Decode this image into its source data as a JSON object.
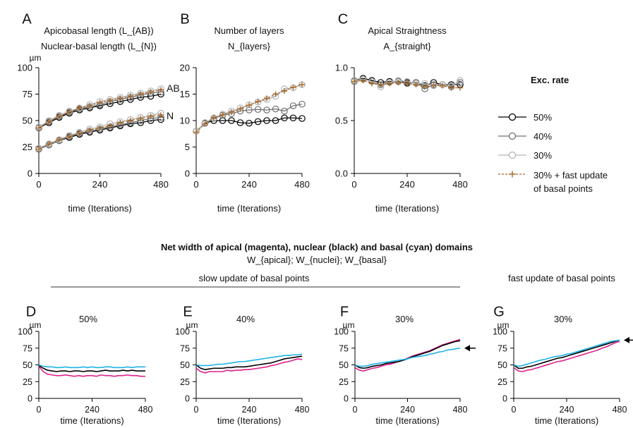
{
  "top_xlabel": "time (Iterations)",
  "unit": "µm",
  "legend": {
    "title": "Exc. rate",
    "entries": [
      {
        "label": "50%",
        "color": "#000000",
        "marker": "circle",
        "dash": false
      },
      {
        "label": "40%",
        "color": "#707070",
        "marker": "circle",
        "dash": false
      },
      {
        "label": "30%",
        "color": "#b4b4b4",
        "marker": "circle",
        "dash": false
      },
      {
        "label": "30% + fast update",
        "label2": "of basal points",
        "color": "#a5692a",
        "marker": "plus",
        "dash": true
      }
    ]
  },
  "bottom_header": {
    "title": "Net width of apical (magenta), nuclear (black) and basal (cyan) domains",
    "subtitle": "W_{apical}; W_{nuclei}; W_{basal}",
    "slow_label": "slow update of basal points",
    "fast_label": "fast update of basal points"
  },
  "colors": {
    "apical": "#e0208a",
    "nuclear": "#000000",
    "basal": "#1fb3e8",
    "fast": "#a5692a"
  },
  "chart_data": [
    {
      "panel": "A",
      "type": "line",
      "title": "Apicobasal length (L_{AB})",
      "subtitle": "Nuclear-basal length (L_{N})",
      "xlabel": "time (Iterations)",
      "ylabel": "µm",
      "xlim": [
        0,
        480
      ],
      "ylim": [
        0,
        100
      ],
      "xticks": [
        0,
        240,
        480
      ],
      "yticks": [
        0,
        25,
        50,
        75,
        100
      ],
      "annotations": [
        {
          "text": "AB",
          "x": 480,
          "y": 80
        },
        {
          "text": "N",
          "x": 480,
          "y": 54
        }
      ],
      "x": [
        0,
        40,
        80,
        120,
        160,
        200,
        240,
        280,
        320,
        360,
        400,
        440,
        480
      ],
      "series": [
        {
          "name": "50% AB",
          "values": [
            43,
            48,
            53,
            57,
            60,
            62,
            64,
            66,
            68,
            70,
            72,
            73,
            75
          ]
        },
        {
          "name": "40% AB",
          "values": [
            43,
            49,
            54,
            58,
            61,
            63,
            65,
            68,
            70,
            72,
            74,
            76,
            77
          ]
        },
        {
          "name": "30% AB",
          "values": [
            44,
            50,
            55,
            59,
            62,
            65,
            68,
            70,
            72,
            74,
            76,
            78,
            80
          ]
        },
        {
          "name": "30% + fast update AB",
          "values": [
            43,
            49,
            54,
            58,
            62,
            64,
            67,
            69,
            71,
            73,
            75,
            77,
            79
          ]
        },
        {
          "name": "50% N",
          "values": [
            23,
            27,
            31,
            34,
            37,
            39,
            41,
            43,
            45,
            47,
            48,
            50,
            51
          ]
        },
        {
          "name": "40% N",
          "values": [
            23,
            27,
            31,
            35,
            38,
            40,
            42,
            44,
            46,
            48,
            50,
            52,
            53
          ]
        },
        {
          "name": "30% N",
          "values": [
            24,
            28,
            32,
            36,
            39,
            42,
            44,
            47,
            49,
            51,
            53,
            55,
            57
          ]
        },
        {
          "name": "30% + fast update N",
          "values": [
            23,
            28,
            32,
            35,
            38,
            41,
            43,
            45,
            48,
            50,
            52,
            54,
            55
          ]
        }
      ]
    },
    {
      "panel": "B",
      "type": "line",
      "title": "Number of layers",
      "subtitle": "N_{layers}",
      "xlabel": "time (Iterations)",
      "xlim": [
        0,
        480
      ],
      "ylim": [
        0,
        20
      ],
      "xticks": [
        0,
        240,
        480
      ],
      "yticks": [
        0,
        5,
        10,
        15,
        20
      ],
      "x": [
        0,
        40,
        80,
        120,
        160,
        200,
        240,
        280,
        320,
        360,
        400,
        440,
        480
      ],
      "series": [
        {
          "name": "50%",
          "values": [
            8.0,
            9.5,
            10.0,
            10.0,
            10.0,
            9.6,
            9.5,
            9.8,
            10.0,
            10.0,
            10.5,
            10.5,
            10.4
          ]
        },
        {
          "name": "40%",
          "values": [
            8.0,
            9.6,
            10.4,
            11.0,
            11.3,
            11.8,
            12.0,
            12.1,
            12.0,
            12.2,
            11.8,
            12.8,
            13.1
          ]
        },
        {
          "name": "30%",
          "values": [
            8.0,
            9.6,
            10.5,
            11.2,
            11.8,
            12.4,
            13.0,
            13.5,
            14.0,
            14.6,
            16.0,
            16.2,
            16.8
          ]
        },
        {
          "name": "30% + fast update",
          "values": [
            7.8,
            9.4,
            10.6,
            11.1,
            11.6,
            12.2,
            12.9,
            13.6,
            14.2,
            15.0,
            15.6,
            16.3,
            16.8
          ]
        }
      ]
    },
    {
      "panel": "C",
      "type": "line",
      "title": "Apical Straightness",
      "subtitle": "A_{straight}",
      "xlabel": "time (Iterations)",
      "xlim": [
        0,
        480
      ],
      "ylim": [
        0,
        1.0
      ],
      "xticks": [
        0,
        240,
        480
      ],
      "yticks": [
        0.0,
        0.5,
        1.0
      ],
      "x": [
        0,
        40,
        80,
        120,
        160,
        200,
        240,
        280,
        320,
        360,
        400,
        440,
        480
      ],
      "series": [
        {
          "name": "50%",
          "values": [
            0.88,
            0.9,
            0.88,
            0.86,
            0.87,
            0.87,
            0.86,
            0.86,
            0.83,
            0.86,
            0.84,
            0.84,
            0.84
          ]
        },
        {
          "name": "40%",
          "values": [
            0.87,
            0.89,
            0.87,
            0.84,
            0.86,
            0.87,
            0.85,
            0.86,
            0.8,
            0.84,
            0.84,
            0.82,
            0.86
          ]
        },
        {
          "name": "30%",
          "values": [
            0.88,
            0.89,
            0.87,
            0.82,
            0.86,
            0.88,
            0.87,
            0.85,
            0.85,
            0.83,
            0.84,
            0.83,
            0.88
          ]
        },
        {
          "name": "30% + fast update",
          "values": [
            0.87,
            0.88,
            0.85,
            0.84,
            0.85,
            0.86,
            0.85,
            0.84,
            0.82,
            0.83,
            0.83,
            0.81,
            0.81
          ]
        }
      ]
    },
    {
      "panel": "D",
      "type": "line",
      "title": "50%",
      "xlabel": "time (Iterations)",
      "ylabel": "µm",
      "xlim": [
        0,
        480
      ],
      "ylim": [
        0,
        100
      ],
      "xticks": [
        0,
        240,
        480
      ],
      "yticks": [
        0,
        25,
        50,
        75,
        100
      ],
      "arrow": false,
      "x": [
        0,
        20,
        40,
        60,
        80,
        100,
        120,
        140,
        160,
        180,
        200,
        220,
        240,
        260,
        280,
        300,
        320,
        340,
        360,
        380,
        400,
        420,
        440,
        460,
        480
      ],
      "series": [
        {
          "name": "apical",
          "values": [
            48,
            40,
            36,
            35,
            34,
            34,
            35,
            34,
            33,
            34,
            33,
            34,
            34,
            33,
            35,
            34,
            34,
            33,
            34,
            34,
            35,
            34,
            34,
            33,
            33
          ]
        },
        {
          "name": "nuclear",
          "values": [
            49,
            45,
            42,
            41,
            40,
            41,
            41,
            40,
            41,
            41,
            40,
            41,
            41,
            40,
            41,
            42,
            41,
            41,
            41,
            42,
            41,
            42,
            41,
            41,
            41
          ]
        },
        {
          "name": "basal",
          "values": [
            50,
            48,
            47,
            47,
            46,
            46,
            47,
            46,
            46,
            46,
            47,
            46,
            47,
            46,
            46,
            47,
            47,
            46,
            46,
            46,
            47,
            46,
            47,
            47,
            47
          ]
        }
      ]
    },
    {
      "panel": "E",
      "type": "line",
      "title": "40%",
      "xlabel": "time (Iterations)",
      "ylabel": "µm",
      "xlim": [
        0,
        480
      ],
      "ylim": [
        0,
        100
      ],
      "xticks": [
        0,
        240,
        480
      ],
      "yticks": [
        0,
        25,
        50,
        75,
        100
      ],
      "arrow": false,
      "x": [
        0,
        20,
        40,
        60,
        80,
        100,
        120,
        140,
        160,
        180,
        200,
        220,
        240,
        260,
        280,
        300,
        320,
        340,
        360,
        380,
        400,
        420,
        440,
        460,
        480
      ],
      "series": [
        {
          "name": "apical",
          "values": [
            45,
            40,
            38,
            40,
            40,
            40,
            40,
            42,
            41,
            42,
            42,
            43,
            43,
            44,
            45,
            46,
            47,
            49,
            50,
            52,
            54,
            55,
            57,
            59,
            58
          ]
        },
        {
          "name": "nuclear",
          "values": [
            50,
            45,
            43,
            44,
            45,
            45,
            45,
            46,
            46,
            47,
            47,
            47,
            48,
            49,
            50,
            51,
            52,
            53,
            55,
            57,
            59,
            60,
            61,
            62,
            63
          ]
        },
        {
          "name": "basal",
          "values": [
            50,
            49,
            49,
            49,
            50,
            51,
            51,
            52,
            53,
            54,
            55,
            55,
            56,
            57,
            58,
            59,
            60,
            61,
            62,
            63,
            64,
            64,
            65,
            65,
            66
          ]
        }
      ]
    },
    {
      "panel": "F",
      "type": "line",
      "title": "30%",
      "xlabel": "time (Iterations)",
      "ylabel": "µm",
      "xlim": [
        0,
        480
      ],
      "ylim": [
        0,
        100
      ],
      "xticks": [
        0,
        240,
        480
      ],
      "yticks": [
        0,
        25,
        50,
        75,
        100
      ],
      "arrow": true,
      "arrow_y": 75,
      "x": [
        0,
        20,
        40,
        60,
        80,
        100,
        120,
        140,
        160,
        180,
        200,
        220,
        240,
        260,
        280,
        300,
        320,
        340,
        360,
        380,
        400,
        420,
        440,
        460,
        480
      ],
      "series": [
        {
          "name": "apical",
          "values": [
            46,
            42,
            41,
            43,
            45,
            46,
            48,
            50,
            51,
            53,
            55,
            57,
            60,
            63,
            65,
            67,
            69,
            71,
            74,
            77,
            80,
            82,
            84,
            86,
            88
          ]
        },
        {
          "name": "nuclear",
          "values": [
            50,
            46,
            45,
            46,
            48,
            49,
            50,
            52,
            53,
            54,
            55,
            57,
            59,
            62,
            64,
            66,
            68,
            70,
            73,
            76,
            79,
            81,
            83,
            85,
            86
          ]
        },
        {
          "name": "basal",
          "values": [
            50,
            48,
            48,
            49,
            51,
            52,
            53,
            54,
            55,
            56,
            57,
            58,
            59,
            61,
            62,
            63,
            64,
            66,
            67,
            69,
            70,
            72,
            73,
            74,
            75
          ]
        }
      ]
    },
    {
      "panel": "G",
      "type": "line",
      "title": "30%",
      "xlabel": "time (Iterations)",
      "ylabel": "µm",
      "xlim": [
        0,
        480
      ],
      "ylim": [
        0,
        100
      ],
      "xticks": [
        0,
        240,
        480
      ],
      "yticks": [
        0,
        25,
        50,
        75,
        100
      ],
      "arrow": true,
      "arrow_y": 87,
      "x": [
        0,
        20,
        40,
        60,
        80,
        100,
        120,
        140,
        160,
        180,
        200,
        220,
        240,
        260,
        280,
        300,
        320,
        340,
        360,
        380,
        400,
        420,
        440,
        460,
        480
      ],
      "series": [
        {
          "name": "apical",
          "values": [
            46,
            41,
            40,
            42,
            43,
            45,
            47,
            49,
            51,
            53,
            55,
            56,
            58,
            60,
            62,
            64,
            66,
            68,
            70,
            72,
            75,
            77,
            80,
            83,
            85
          ]
        },
        {
          "name": "nuclear",
          "values": [
            50,
            45,
            45,
            47,
            48,
            50,
            52,
            54,
            56,
            58,
            60,
            61,
            63,
            65,
            67,
            69,
            71,
            73,
            75,
            77,
            79,
            81,
            83,
            85,
            87
          ]
        },
        {
          "name": "basal",
          "values": [
            50,
            48,
            49,
            51,
            53,
            55,
            57,
            58,
            60,
            62,
            63,
            64,
            66,
            67,
            69,
            71,
            73,
            75,
            77,
            79,
            81,
            83,
            85,
            86,
            87
          ]
        }
      ]
    }
  ]
}
